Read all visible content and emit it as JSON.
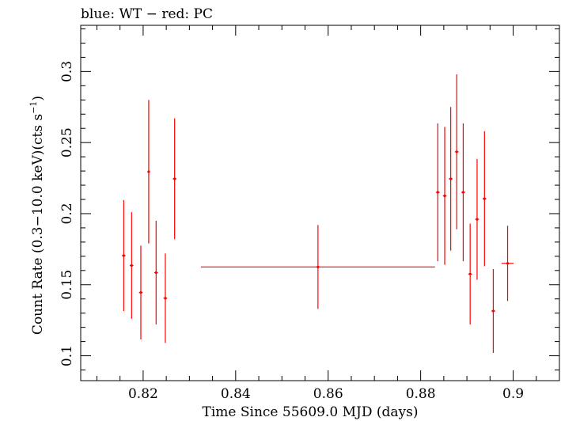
{
  "chart_data": {
    "type": "scatter",
    "title": "blue: WT − red: PC",
    "xlabel": "Time Since 55609.0 MJD (days)",
    "ylabel_main": "Count Rate (0.3−10.0 keV)(cts s",
    "ylabel_sup": "−1",
    "ylabel_close": ")",
    "xlim": [
      0.8065,
      0.91
    ],
    "ylim": [
      0.0825,
      0.3325
    ],
    "x_ticks": [
      0.82,
      0.84,
      0.86,
      0.88,
      0.9
    ],
    "x_tick_labels": [
      "0.82",
      "0.84",
      "0.86",
      "0.88",
      "0.9"
    ],
    "y_ticks": [
      0.1,
      0.15,
      0.2,
      0.25,
      0.3
    ],
    "y_tick_labels": [
      "0.1",
      "0.15",
      "0.2",
      "0.25",
      "0.3"
    ],
    "series": [
      {
        "color": "#ff0000",
        "points": [
          {
            "x": 0.8158,
            "xerr": 0.0004,
            "y": 0.1705,
            "yerr": 0.039
          },
          {
            "x": 0.8175,
            "xerr": 0.0004,
            "y": 0.1635,
            "yerr": 0.0375
          },
          {
            "x": 0.8195,
            "xerr": 0.0004,
            "y": 0.1445,
            "yerr": 0.033
          },
          {
            "x": 0.8212,
            "xerr": 0.0002,
            "y": 0.2295,
            "yerr": 0.0505
          },
          {
            "x": 0.8228,
            "xerr": 0.0004,
            "y": 0.1585,
            "yerr": 0.0365
          },
          {
            "x": 0.8248,
            "xerr": 0.0004,
            "y": 0.1405,
            "yerr": 0.0315
          },
          {
            "x": 0.8268,
            "xerr": 0.0004,
            "y": 0.2245,
            "yerr": 0.0425
          },
          {
            "x": 0.8578,
            "xerr": 0.0253,
            "y": 0.1625,
            "yerr": 0.0295
          },
          {
            "x": 0.8837,
            "xerr": 0.0004,
            "y": 0.215,
            "yerr": 0.0485
          },
          {
            "x": 0.8852,
            "xerr": 0.0004,
            "y": 0.2125,
            "yerr": 0.0485
          },
          {
            "x": 0.8865,
            "xerr": 0.0004,
            "y": 0.2245,
            "yerr": 0.0505
          },
          {
            "x": 0.8878,
            "xerr": 0.0004,
            "y": 0.2435,
            "yerr": 0.0545
          },
          {
            "x": 0.8892,
            "xerr": 0.0004,
            "y": 0.215,
            "yerr": 0.0485
          },
          {
            "x": 0.8907,
            "xerr": 0.0004,
            "y": 0.1575,
            "yerr": 0.0355
          },
          {
            "x": 0.8922,
            "xerr": 0.0004,
            "y": 0.196,
            "yerr": 0.0425
          },
          {
            "x": 0.8938,
            "xerr": 0.0004,
            "y": 0.2105,
            "yerr": 0.0475
          },
          {
            "x": 0.8957,
            "xerr": 0.0004,
            "y": 0.1315,
            "yerr": 0.0295
          },
          {
            "x": 0.8988,
            "xerr": 0.0013,
            "y": 0.165,
            "yerr": 0.0265
          }
        ]
      }
    ]
  }
}
